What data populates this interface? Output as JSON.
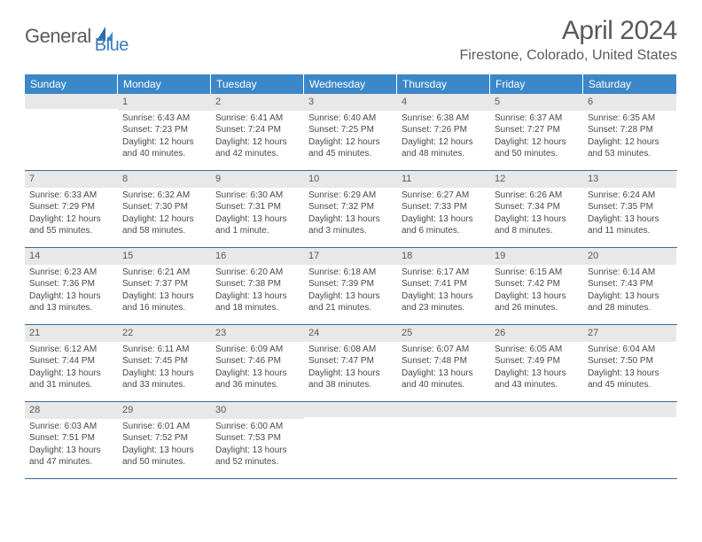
{
  "brand": {
    "word1": "General",
    "word2": "Blue"
  },
  "title": {
    "month_year": "April 2024",
    "location": "Firestone, Colorado, United States"
  },
  "colors": {
    "header_bg": "#3b87c8",
    "header_text": "#ffffff",
    "daynum_bg": "#e8e8e8",
    "week_border": "#3b6b9a",
    "brand_blue": "#3b7bbf",
    "body_text": "#4a4a4a"
  },
  "dow": [
    "Sunday",
    "Monday",
    "Tuesday",
    "Wednesday",
    "Thursday",
    "Friday",
    "Saturday"
  ],
  "weeks": [
    [
      {
        "num": "",
        "sunrise": "",
        "sunset": "",
        "daylight1": "",
        "daylight2": ""
      },
      {
        "num": "1",
        "sunrise": "Sunrise: 6:43 AM",
        "sunset": "Sunset: 7:23 PM",
        "daylight1": "Daylight: 12 hours",
        "daylight2": "and 40 minutes."
      },
      {
        "num": "2",
        "sunrise": "Sunrise: 6:41 AM",
        "sunset": "Sunset: 7:24 PM",
        "daylight1": "Daylight: 12 hours",
        "daylight2": "and 42 minutes."
      },
      {
        "num": "3",
        "sunrise": "Sunrise: 6:40 AM",
        "sunset": "Sunset: 7:25 PM",
        "daylight1": "Daylight: 12 hours",
        "daylight2": "and 45 minutes."
      },
      {
        "num": "4",
        "sunrise": "Sunrise: 6:38 AM",
        "sunset": "Sunset: 7:26 PM",
        "daylight1": "Daylight: 12 hours",
        "daylight2": "and 48 minutes."
      },
      {
        "num": "5",
        "sunrise": "Sunrise: 6:37 AM",
        "sunset": "Sunset: 7:27 PM",
        "daylight1": "Daylight: 12 hours",
        "daylight2": "and 50 minutes."
      },
      {
        "num": "6",
        "sunrise": "Sunrise: 6:35 AM",
        "sunset": "Sunset: 7:28 PM",
        "daylight1": "Daylight: 12 hours",
        "daylight2": "and 53 minutes."
      }
    ],
    [
      {
        "num": "7",
        "sunrise": "Sunrise: 6:33 AM",
        "sunset": "Sunset: 7:29 PM",
        "daylight1": "Daylight: 12 hours",
        "daylight2": "and 55 minutes."
      },
      {
        "num": "8",
        "sunrise": "Sunrise: 6:32 AM",
        "sunset": "Sunset: 7:30 PM",
        "daylight1": "Daylight: 12 hours",
        "daylight2": "and 58 minutes."
      },
      {
        "num": "9",
        "sunrise": "Sunrise: 6:30 AM",
        "sunset": "Sunset: 7:31 PM",
        "daylight1": "Daylight: 13 hours",
        "daylight2": "and 1 minute."
      },
      {
        "num": "10",
        "sunrise": "Sunrise: 6:29 AM",
        "sunset": "Sunset: 7:32 PM",
        "daylight1": "Daylight: 13 hours",
        "daylight2": "and 3 minutes."
      },
      {
        "num": "11",
        "sunrise": "Sunrise: 6:27 AM",
        "sunset": "Sunset: 7:33 PM",
        "daylight1": "Daylight: 13 hours",
        "daylight2": "and 6 minutes."
      },
      {
        "num": "12",
        "sunrise": "Sunrise: 6:26 AM",
        "sunset": "Sunset: 7:34 PM",
        "daylight1": "Daylight: 13 hours",
        "daylight2": "and 8 minutes."
      },
      {
        "num": "13",
        "sunrise": "Sunrise: 6:24 AM",
        "sunset": "Sunset: 7:35 PM",
        "daylight1": "Daylight: 13 hours",
        "daylight2": "and 11 minutes."
      }
    ],
    [
      {
        "num": "14",
        "sunrise": "Sunrise: 6:23 AM",
        "sunset": "Sunset: 7:36 PM",
        "daylight1": "Daylight: 13 hours",
        "daylight2": "and 13 minutes."
      },
      {
        "num": "15",
        "sunrise": "Sunrise: 6:21 AM",
        "sunset": "Sunset: 7:37 PM",
        "daylight1": "Daylight: 13 hours",
        "daylight2": "and 16 minutes."
      },
      {
        "num": "16",
        "sunrise": "Sunrise: 6:20 AM",
        "sunset": "Sunset: 7:38 PM",
        "daylight1": "Daylight: 13 hours",
        "daylight2": "and 18 minutes."
      },
      {
        "num": "17",
        "sunrise": "Sunrise: 6:18 AM",
        "sunset": "Sunset: 7:39 PM",
        "daylight1": "Daylight: 13 hours",
        "daylight2": "and 21 minutes."
      },
      {
        "num": "18",
        "sunrise": "Sunrise: 6:17 AM",
        "sunset": "Sunset: 7:41 PM",
        "daylight1": "Daylight: 13 hours",
        "daylight2": "and 23 minutes."
      },
      {
        "num": "19",
        "sunrise": "Sunrise: 6:15 AM",
        "sunset": "Sunset: 7:42 PM",
        "daylight1": "Daylight: 13 hours",
        "daylight2": "and 26 minutes."
      },
      {
        "num": "20",
        "sunrise": "Sunrise: 6:14 AM",
        "sunset": "Sunset: 7:43 PM",
        "daylight1": "Daylight: 13 hours",
        "daylight2": "and 28 minutes."
      }
    ],
    [
      {
        "num": "21",
        "sunrise": "Sunrise: 6:12 AM",
        "sunset": "Sunset: 7:44 PM",
        "daylight1": "Daylight: 13 hours",
        "daylight2": "and 31 minutes."
      },
      {
        "num": "22",
        "sunrise": "Sunrise: 6:11 AM",
        "sunset": "Sunset: 7:45 PM",
        "daylight1": "Daylight: 13 hours",
        "daylight2": "and 33 minutes."
      },
      {
        "num": "23",
        "sunrise": "Sunrise: 6:09 AM",
        "sunset": "Sunset: 7:46 PM",
        "daylight1": "Daylight: 13 hours",
        "daylight2": "and 36 minutes."
      },
      {
        "num": "24",
        "sunrise": "Sunrise: 6:08 AM",
        "sunset": "Sunset: 7:47 PM",
        "daylight1": "Daylight: 13 hours",
        "daylight2": "and 38 minutes."
      },
      {
        "num": "25",
        "sunrise": "Sunrise: 6:07 AM",
        "sunset": "Sunset: 7:48 PM",
        "daylight1": "Daylight: 13 hours",
        "daylight2": "and 40 minutes."
      },
      {
        "num": "26",
        "sunrise": "Sunrise: 6:05 AM",
        "sunset": "Sunset: 7:49 PM",
        "daylight1": "Daylight: 13 hours",
        "daylight2": "and 43 minutes."
      },
      {
        "num": "27",
        "sunrise": "Sunrise: 6:04 AM",
        "sunset": "Sunset: 7:50 PM",
        "daylight1": "Daylight: 13 hours",
        "daylight2": "and 45 minutes."
      }
    ],
    [
      {
        "num": "28",
        "sunrise": "Sunrise: 6:03 AM",
        "sunset": "Sunset: 7:51 PM",
        "daylight1": "Daylight: 13 hours",
        "daylight2": "and 47 minutes."
      },
      {
        "num": "29",
        "sunrise": "Sunrise: 6:01 AM",
        "sunset": "Sunset: 7:52 PM",
        "daylight1": "Daylight: 13 hours",
        "daylight2": "and 50 minutes."
      },
      {
        "num": "30",
        "sunrise": "Sunrise: 6:00 AM",
        "sunset": "Sunset: 7:53 PM",
        "daylight1": "Daylight: 13 hours",
        "daylight2": "and 52 minutes."
      },
      {
        "num": "",
        "sunrise": "",
        "sunset": "",
        "daylight1": "",
        "daylight2": ""
      },
      {
        "num": "",
        "sunrise": "",
        "sunset": "",
        "daylight1": "",
        "daylight2": ""
      },
      {
        "num": "",
        "sunrise": "",
        "sunset": "",
        "daylight1": "",
        "daylight2": ""
      },
      {
        "num": "",
        "sunrise": "",
        "sunset": "",
        "daylight1": "",
        "daylight2": ""
      }
    ]
  ]
}
